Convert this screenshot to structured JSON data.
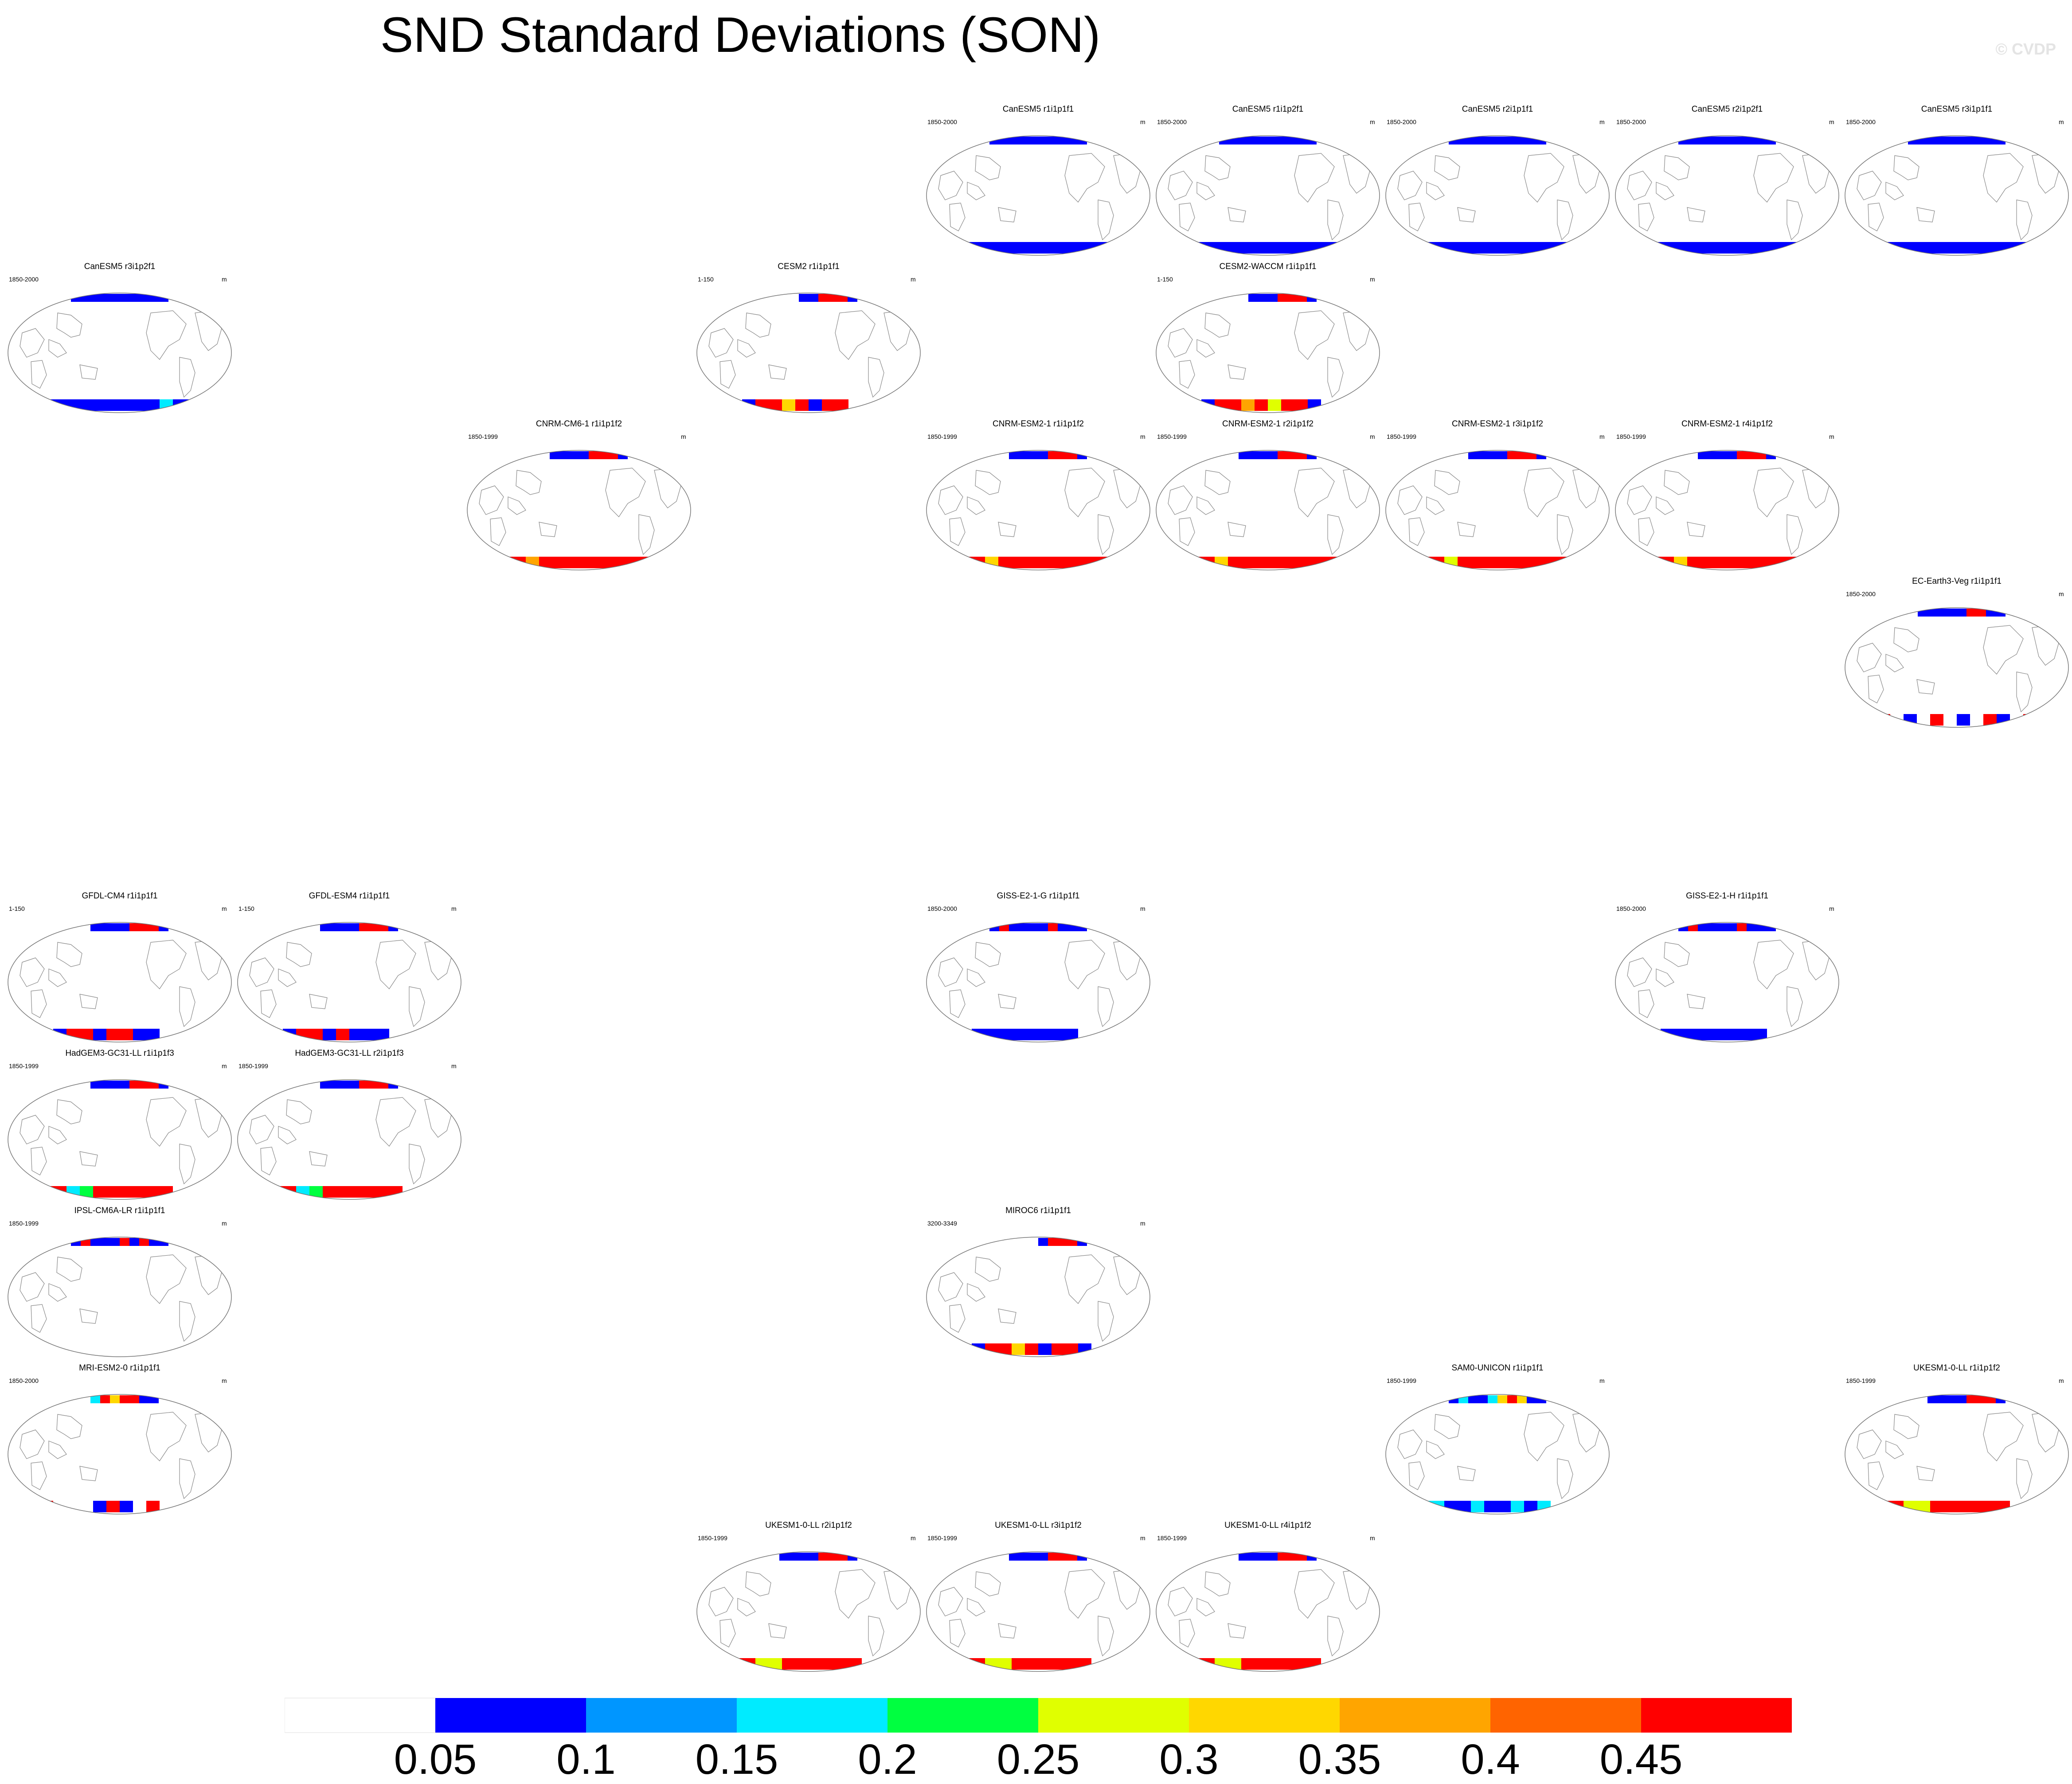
{
  "title": "SND Standard Deviations (SON)",
  "watermark": "© CVDP",
  "chart_data": {
    "type": "heatmap",
    "title": "SND Standard Deviations (SON)",
    "variable": "SND",
    "season": "SON",
    "statistic": "Standard Deviations",
    "panels": [
      {
        "model": "CanESM5 r1i1p1f1",
        "years": "1850-2000",
        "units": "m",
        "col": 4,
        "row": 0,
        "south": [
          0.05,
          0.05,
          0.05,
          0.05,
          0.05,
          0.05,
          0.05,
          0.05,
          0.05,
          0.05,
          0.05,
          0.05
        ],
        "north": [
          0.05,
          0.05,
          0.05,
          0.05,
          0.05,
          0.05,
          0.05,
          0.05,
          0.05,
          0.05
        ]
      },
      {
        "model": "CanESM5 r1i1p2f1",
        "years": "1850-2000",
        "units": "m",
        "col": 5,
        "row": 0,
        "south": [
          0.05,
          0.05,
          0.05,
          0.05,
          0.05,
          0.05,
          0.05,
          0.05,
          0.05,
          0.05,
          0.05,
          0.05
        ],
        "north": [
          0.05,
          0.05,
          0.05,
          0.05,
          0.05,
          0.05,
          0.05,
          0.05,
          0.05,
          0.05
        ]
      },
      {
        "model": "CanESM5 r2i1p1f1",
        "years": "1850-2000",
        "units": "m",
        "col": 6,
        "row": 0,
        "south": [
          0.05,
          0.05,
          0.05,
          0.05,
          0.05,
          0.05,
          0.05,
          0.05,
          0.05,
          0.05,
          0.05,
          0.05
        ],
        "north": [
          0.05,
          0.05,
          0.05,
          0.05,
          0.05,
          0.05,
          0.05,
          0.05,
          0.05,
          0.05
        ]
      },
      {
        "model": "CanESM5 r2i1p2f1",
        "years": "1850-2000",
        "units": "m",
        "col": 7,
        "row": 0,
        "south": [
          0.05,
          0.05,
          0.05,
          0.05,
          0.05,
          0.05,
          0.05,
          0.05,
          0.05,
          0.05,
          0.05,
          0.05
        ],
        "north": [
          0.05,
          0.05,
          0.05,
          0.05,
          0.05,
          0.05,
          0.05,
          0.05,
          0.05,
          0.05
        ]
      },
      {
        "model": "CanESM5 r3i1p1f1",
        "years": "1850-2000",
        "units": "m",
        "col": 8,
        "row": 0,
        "south": [
          0.05,
          0.05,
          0.05,
          0.05,
          0.05,
          0.05,
          0.05,
          0.05,
          0.05,
          0.05,
          0.05,
          0.05
        ],
        "north": [
          0.05,
          0.05,
          0.05,
          0.05,
          0.05,
          0.05,
          0.05,
          0.05,
          0.05,
          0.05
        ]
      },
      {
        "model": "CanESM5 r3i1p2f1",
        "years": "1850-2000",
        "units": "m",
        "col": 0,
        "row": 1,
        "south": [
          0.05,
          0.05,
          0.05,
          0.05,
          0.05,
          0.05,
          0.05,
          0.05,
          0.05,
          0.15,
          0.05,
          0.05
        ],
        "north": [
          0.05,
          0.05,
          0.05,
          0.05,
          0.05,
          0.05,
          0.05,
          0.05,
          0.05,
          0.05
        ]
      },
      {
        "model": "CESM2 r1i1p1f1",
        "years": "1-150",
        "units": "m",
        "col": 3,
        "row": 1,
        "south": [
          0.0,
          0.05,
          0.45,
          0.45,
          0.3,
          0.45,
          0.05,
          0.45,
          0.45,
          0.0,
          0.0,
          0.0
        ],
        "north": [
          0.0,
          0.0,
          0.0,
          0.0,
          0.05,
          0.05,
          0.45,
          0.45,
          0.45,
          0.05
        ]
      },
      {
        "model": "CESM2-WACCM r1i1p1f1",
        "years": "1-150",
        "units": "m",
        "col": 5,
        "row": 1,
        "south": [
          0.0,
          0.05,
          0.45,
          0.45,
          0.35,
          0.45,
          0.25,
          0.45,
          0.45,
          0.05,
          0.0,
          0.0
        ],
        "north": [
          0.0,
          0.0,
          0.0,
          0.05,
          0.05,
          0.05,
          0.45,
          0.45,
          0.45,
          0.05
        ]
      },
      {
        "model": "CNRM-CM6-1 r1i1p1f2",
        "years": "1850-1999",
        "units": "m",
        "col": 2,
        "row": 2,
        "south": [
          0.45,
          0.45,
          0.35,
          0.45,
          0.45,
          0.45,
          0.45,
          0.45,
          0.45,
          0.45,
          0.45,
          0.45
        ],
        "north": [
          0.0,
          0.0,
          0.05,
          0.05,
          0.05,
          0.05,
          0.45,
          0.45,
          0.45,
          0.05
        ]
      },
      {
        "model": "CNRM-ESM2-1 r1i1p1f2",
        "years": "1850-1999",
        "units": "m",
        "col": 4,
        "row": 2,
        "south": [
          0.45,
          0.45,
          0.3,
          0.45,
          0.45,
          0.45,
          0.45,
          0.45,
          0.45,
          0.45,
          0.45,
          0.45
        ],
        "north": [
          0.0,
          0.0,
          0.05,
          0.05,
          0.05,
          0.05,
          0.45,
          0.45,
          0.45,
          0.05
        ]
      },
      {
        "model": "CNRM-ESM2-1 r2i1p1f2",
        "years": "1850-1999",
        "units": "m",
        "col": 5,
        "row": 2,
        "south": [
          0.45,
          0.45,
          0.3,
          0.45,
          0.45,
          0.45,
          0.45,
          0.45,
          0.45,
          0.45,
          0.45,
          0.45
        ],
        "north": [
          0.0,
          0.0,
          0.05,
          0.05,
          0.05,
          0.05,
          0.45,
          0.45,
          0.45,
          0.05
        ]
      },
      {
        "model": "CNRM-ESM2-1 r3i1p1f2",
        "years": "1850-1999",
        "units": "m",
        "col": 6,
        "row": 2,
        "south": [
          0.45,
          0.45,
          0.25,
          0.45,
          0.45,
          0.45,
          0.45,
          0.45,
          0.45,
          0.45,
          0.45,
          0.45
        ],
        "north": [
          0.0,
          0.0,
          0.05,
          0.05,
          0.05,
          0.05,
          0.45,
          0.45,
          0.45,
          0.05
        ]
      },
      {
        "model": "CNRM-ESM2-1 r4i1p1f2",
        "years": "1850-1999",
        "units": "m",
        "col": 7,
        "row": 2,
        "south": [
          0.45,
          0.45,
          0.3,
          0.45,
          0.45,
          0.45,
          0.45,
          0.45,
          0.45,
          0.45,
          0.45,
          0.45
        ],
        "north": [
          0.0,
          0.0,
          0.05,
          0.05,
          0.05,
          0.05,
          0.45,
          0.45,
          0.45,
          0.05
        ]
      },
      {
        "model": "EC-Earth3-Veg r1i1p1f1",
        "years": "1850-2000",
        "units": "m",
        "col": 8,
        "row": 3,
        "south": [
          0.45,
          0.0,
          0.05,
          0.0,
          0.45,
          0.0,
          0.05,
          0.0,
          0.45,
          0.05,
          0.0,
          0.45
        ],
        "north": [
          0.0,
          0.05,
          0.05,
          0.05,
          0.05,
          0.05,
          0.45,
          0.45,
          0.05,
          0.05
        ]
      },
      {
        "model": "GFDL-CM4 r1i1p1f1",
        "years": "1-150",
        "units": "m",
        "col": 0,
        "row": 5,
        "south": [
          0.0,
          0.05,
          0.45,
          0.45,
          0.05,
          0.45,
          0.45,
          0.05,
          0.05,
          0.0,
          0.0,
          0.0
        ],
        "north": [
          0.0,
          0.0,
          0.05,
          0.05,
          0.05,
          0.05,
          0.45,
          0.45,
          0.45,
          0.05
        ]
      },
      {
        "model": "GFDL-ESM4 r1i1p1f1",
        "years": "1-150",
        "units": "m",
        "col": 1,
        "row": 5,
        "south": [
          0.0,
          0.05,
          0.45,
          0.45,
          0.05,
          0.45,
          0.05,
          0.05,
          0.05,
          0.0,
          0.0,
          0.0
        ],
        "north": [
          0.0,
          0.0,
          0.05,
          0.05,
          0.05,
          0.05,
          0.45,
          0.45,
          0.45,
          0.05
        ]
      },
      {
        "model": "GISS-E2-1-G r1i1p1f1",
        "years": "1850-2000",
        "units": "m",
        "col": 4,
        "row": 5,
        "south": [
          0.0,
          0.05,
          0.05,
          0.05,
          0.05,
          0.05,
          0.05,
          0.05,
          0.05,
          0.0,
          0.0,
          0.0
        ],
        "north": [
          0.05,
          0.45,
          0.05,
          0.05,
          0.05,
          0.05,
          0.45,
          0.05,
          0.05,
          0.05
        ]
      },
      {
        "model": "GISS-E2-1-H r1i1p1f1",
        "years": "1850-2000",
        "units": "m",
        "col": 7,
        "row": 5,
        "south": [
          0.0,
          0.05,
          0.05,
          0.05,
          0.05,
          0.05,
          0.05,
          0.05,
          0.05,
          0.0,
          0.0,
          0.0
        ],
        "north": [
          0.05,
          0.45,
          0.05,
          0.05,
          0.05,
          0.05,
          0.45,
          0.05,
          0.05,
          0.05
        ]
      },
      {
        "model": "HadGEM3-GC31-LL r1i1p1f3",
        "years": "1850-1999",
        "units": "m",
        "col": 0,
        "row": 6,
        "south": [
          0.45,
          0.45,
          0.15,
          0.2,
          0.45,
          0.45,
          0.45,
          0.45,
          0.45,
          0.45,
          0.0,
          0.0
        ],
        "north": [
          0.0,
          0.0,
          0.05,
          0.05,
          0.05,
          0.05,
          0.45,
          0.45,
          0.45,
          0.05
        ]
      },
      {
        "model": "HadGEM3-GC31-LL r2i1p1f3",
        "years": "1850-1999",
        "units": "m",
        "col": 1,
        "row": 6,
        "south": [
          0.45,
          0.45,
          0.15,
          0.2,
          0.45,
          0.45,
          0.45,
          0.45,
          0.45,
          0.45,
          0.0,
          0.0
        ],
        "north": [
          0.0,
          0.0,
          0.05,
          0.05,
          0.05,
          0.05,
          0.45,
          0.45,
          0.45,
          0.05
        ]
      },
      {
        "model": "IPSL-CM6A-LR r1i1p1f1",
        "years": "1850-1999",
        "units": "m",
        "col": 0,
        "row": 7,
        "south": [
          0.0,
          0.0,
          0.0,
          0.0,
          0.0,
          0.0,
          0.0,
          0.0,
          0.0,
          0.0,
          0.0,
          0.0
        ],
        "north": [
          0.05,
          0.45,
          0.05,
          0.05,
          0.05,
          0.45,
          0.05,
          0.45,
          0.05,
          0.05
        ]
      },
      {
        "model": "MIROC6 r1i1p1f1",
        "years": "3200-3349",
        "units": "m",
        "col": 4,
        "row": 7,
        "south": [
          0.0,
          0.05,
          0.45,
          0.45,
          0.3,
          0.45,
          0.05,
          0.45,
          0.45,
          0.05,
          0.0,
          0.0
        ],
        "north": [
          0.0,
          0.0,
          0.0,
          0.0,
          0.0,
          0.05,
          0.45,
          0.45,
          0.45,
          0.05
        ]
      },
      {
        "model": "MRI-ESM2-0 r1i1p1f1",
        "years": "1850-2000",
        "units": "m",
        "col": 0,
        "row": 8,
        "south": [
          0.45,
          0.0,
          0.0,
          0.0,
          0.05,
          0.45,
          0.05,
          0.0,
          0.45,
          0.0,
          0.0,
          0.0
        ],
        "north": [
          0.0,
          0.0,
          0.15,
          0.45,
          0.3,
          0.45,
          0.45,
          0.05,
          0.05,
          0.0
        ]
      },
      {
        "model": "SAM0-UNICON r1i1p1f1",
        "years": "1850-1999",
        "units": "m",
        "col": 6,
        "row": 8,
        "south": [
          0.15,
          0.15,
          0.05,
          0.05,
          0.15,
          0.05,
          0.05,
          0.15,
          0.05,
          0.15,
          0.0,
          0.0
        ],
        "north": [
          0.05,
          0.15,
          0.05,
          0.05,
          0.15,
          0.3,
          0.45,
          0.3,
          0.05,
          0.05
        ]
      },
      {
        "model": "UKESM1-0-LL r1i1p1f2",
        "years": "1850-1999",
        "units": "m",
        "col": 8,
        "row": 8,
        "south": [
          0.45,
          0.45,
          0.25,
          0.25,
          0.45,
          0.45,
          0.45,
          0.45,
          0.45,
          0.45,
          0.0,
          0.0
        ],
        "north": [
          0.0,
          0.0,
          0.05,
          0.05,
          0.05,
          0.05,
          0.45,
          0.45,
          0.45,
          0.05
        ]
      },
      {
        "model": "UKESM1-0-LL r2i1p1f2",
        "years": "1850-1999",
        "units": "m",
        "col": 3,
        "row": 9,
        "south": [
          0.45,
          0.45,
          0.25,
          0.25,
          0.45,
          0.45,
          0.45,
          0.45,
          0.45,
          0.45,
          0.0,
          0.0
        ],
        "north": [
          0.0,
          0.0,
          0.05,
          0.05,
          0.05,
          0.05,
          0.45,
          0.45,
          0.45,
          0.05
        ]
      },
      {
        "model": "UKESM1-0-LL r3i1p1f2",
        "years": "1850-1999",
        "units": "m",
        "col": 4,
        "row": 9,
        "south": [
          0.45,
          0.45,
          0.25,
          0.25,
          0.45,
          0.45,
          0.45,
          0.45,
          0.45,
          0.45,
          0.0,
          0.0
        ],
        "north": [
          0.0,
          0.0,
          0.05,
          0.05,
          0.05,
          0.05,
          0.45,
          0.45,
          0.45,
          0.05
        ]
      },
      {
        "model": "UKESM1-0-LL r4i1p1f2",
        "years": "1850-1999",
        "units": "m",
        "col": 5,
        "row": 9,
        "south": [
          0.45,
          0.45,
          0.25,
          0.25,
          0.45,
          0.45,
          0.45,
          0.45,
          0.45,
          0.45,
          0.0,
          0.0
        ],
        "north": [
          0.0,
          0.0,
          0.05,
          0.05,
          0.05,
          0.05,
          0.45,
          0.45,
          0.45,
          0.05
        ]
      }
    ],
    "colorbar": {
      "labels": [
        "0.05",
        "0.1",
        "0.15",
        "0.2",
        "0.25",
        "0.3",
        "0.35",
        "0.4",
        "0.45"
      ],
      "thresholds": [
        0.05,
        0.1,
        0.15,
        0.2,
        0.25,
        0.3,
        0.35,
        0.4,
        0.45
      ],
      "colors": [
        "#ffffff",
        "#0000ff",
        "#0096ff",
        "#00ebff",
        "#00ff40",
        "#e0ff00",
        "#ffd700",
        "#ffa500",
        "#ff6400",
        "#ff0000"
      ]
    }
  }
}
